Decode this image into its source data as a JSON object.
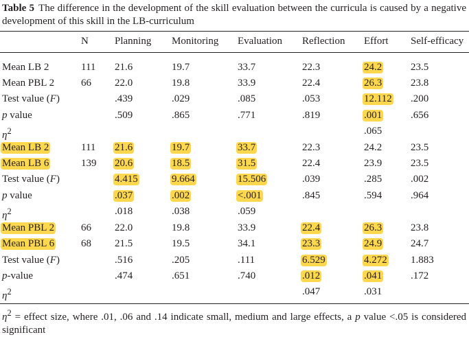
{
  "caption": {
    "label": "Table 5",
    "text": "The difference in the development of the skill evaluation between the curricula is caused by a negative development of this skill in the LB-curriculum"
  },
  "highlight_color": "#fdd74e",
  "text_color": "#231f20",
  "header": [
    "",
    "N",
    "Planning",
    "Monitoring",
    "Evaluation",
    "Reflection",
    "Effort",
    "Self-efficacy"
  ],
  "rows": [
    {
      "cells": [
        {
          "t": "Mean LB 2"
        },
        {
          "t": "111"
        },
        {
          "t": "21.6"
        },
        {
          "t": "19.7"
        },
        {
          "t": "33.7"
        },
        {
          "t": "22.3"
        },
        {
          "t": "24.2",
          "hl": true
        },
        {
          "t": "23.5"
        }
      ]
    },
    {
      "cells": [
        {
          "t": "Mean PBL 2"
        },
        {
          "t": "66"
        },
        {
          "t": "22.0"
        },
        {
          "t": "19.8"
        },
        {
          "t": "33.9"
        },
        {
          "t": "22.4"
        },
        {
          "t": "26.3",
          "hl": true
        },
        {
          "t": "23.8"
        }
      ]
    },
    {
      "cells": [
        {
          "t": "Test value (",
          "t2": "F",
          "t3": ")"
        },
        {
          "t": ""
        },
        {
          "t": ".439"
        },
        {
          "t": ".029"
        },
        {
          "t": ".085"
        },
        {
          "t": ".053"
        },
        {
          "t": "12.112",
          "hl": true
        },
        {
          "t": ".200"
        }
      ]
    },
    {
      "cells": [
        {
          "t": "p",
          "it": true,
          "t3": " value"
        },
        {
          "t": ""
        },
        {
          "t": ".509"
        },
        {
          "t": ".865"
        },
        {
          "t": ".771"
        },
        {
          "t": ".819"
        },
        {
          "t": ".001",
          "hl": true
        },
        {
          "t": ".656"
        }
      ]
    },
    {
      "cells": [
        {
          "t": "η",
          "it": true,
          "sup": "2"
        },
        {
          "t": ""
        },
        {
          "t": ""
        },
        {
          "t": ""
        },
        {
          "t": ""
        },
        {
          "t": ""
        },
        {
          "t": ".065"
        },
        {
          "t": ""
        }
      ]
    },
    {
      "cells": [
        {
          "t": "Mean LB 2",
          "hl": true
        },
        {
          "t": "111"
        },
        {
          "t": "21.6",
          "hl": true
        },
        {
          "t": "19.7",
          "hl": true
        },
        {
          "t": "33.7",
          "hl": true
        },
        {
          "t": "22.3"
        },
        {
          "t": "24.2"
        },
        {
          "t": "23.5"
        }
      ]
    },
    {
      "cells": [
        {
          "t": "Mean LB 6",
          "hl": true
        },
        {
          "t": "139"
        },
        {
          "t": "20.6",
          "hl": true
        },
        {
          "t": "18.5",
          "hl": true
        },
        {
          "t": "31.5",
          "hl": true
        },
        {
          "t": "22.4"
        },
        {
          "t": "23.9"
        },
        {
          "t": "23.5"
        }
      ]
    },
    {
      "cells": [
        {
          "t": "Test value (",
          "t2": "F",
          "t3": ")"
        },
        {
          "t": ""
        },
        {
          "t": "4.415",
          "hl": true
        },
        {
          "t": "9.664",
          "hl": true
        },
        {
          "t": "15.506",
          "hl": true
        },
        {
          "t": ".039"
        },
        {
          "t": ".285"
        },
        {
          "t": ".002"
        }
      ]
    },
    {
      "cells": [
        {
          "t": "p",
          "it": true,
          "t3": " value"
        },
        {
          "t": ""
        },
        {
          "t": ".037",
          "hl": true
        },
        {
          "t": ".002",
          "hl": true
        },
        {
          "t": "<.001",
          "hl": true
        },
        {
          "t": ".845"
        },
        {
          "t": ".594"
        },
        {
          "t": ".964"
        }
      ]
    },
    {
      "cells": [
        {
          "t": "η",
          "it": true,
          "sup": "2"
        },
        {
          "t": ""
        },
        {
          "t": ".018"
        },
        {
          "t": ".038"
        },
        {
          "t": ".059"
        },
        {
          "t": ""
        },
        {
          "t": ""
        },
        {
          "t": ""
        }
      ]
    },
    {
      "cells": [
        {
          "t": "Mean PBL 2",
          "hl": true
        },
        {
          "t": "66"
        },
        {
          "t": "22.0"
        },
        {
          "t": "19.8"
        },
        {
          "t": "33.9"
        },
        {
          "t": "22.4",
          "hl": true
        },
        {
          "t": "26.3",
          "hl": true
        },
        {
          "t": "23.8"
        }
      ]
    },
    {
      "cells": [
        {
          "t": "Mean PBL 6",
          "hl": true
        },
        {
          "t": "68"
        },
        {
          "t": "21.5"
        },
        {
          "t": "19.5"
        },
        {
          "t": "34.1"
        },
        {
          "t": "23.3",
          "hl": true
        },
        {
          "t": "24.9",
          "hl": true
        },
        {
          "t": "24.7"
        }
      ]
    },
    {
      "cells": [
        {
          "t": "Test value (",
          "t2": "F",
          "t3": ")"
        },
        {
          "t": ""
        },
        {
          "t": ".516"
        },
        {
          "t": ".205"
        },
        {
          "t": ".111"
        },
        {
          "t": "6.529",
          "hl": true
        },
        {
          "t": "4.272",
          "hl": true
        },
        {
          "t": "1.883"
        }
      ]
    },
    {
      "cells": [
        {
          "t": "p",
          "it": true,
          "t3": "-value"
        },
        {
          "t": ""
        },
        {
          "t": ".474"
        },
        {
          "t": ".651"
        },
        {
          "t": ".740"
        },
        {
          "t": ".012",
          "hl": true
        },
        {
          "t": ".041",
          "hl": true
        },
        {
          "t": ".172"
        }
      ]
    },
    {
      "cells": [
        {
          "t": "η",
          "it": true,
          "sup": "2"
        },
        {
          "t": ""
        },
        {
          "t": ""
        },
        {
          "t": ""
        },
        {
          "t": ""
        },
        {
          "t": ".047"
        },
        {
          "t": ".031"
        },
        {
          "t": ""
        }
      ]
    }
  ],
  "footnote": {
    "eta": "η",
    "sup": "2",
    "part1": " = effect size, where .01, .06 and .14 indicate small, medium and large effects, a ",
    "p": "p",
    "part2": " value <.05 is considered significant"
  }
}
